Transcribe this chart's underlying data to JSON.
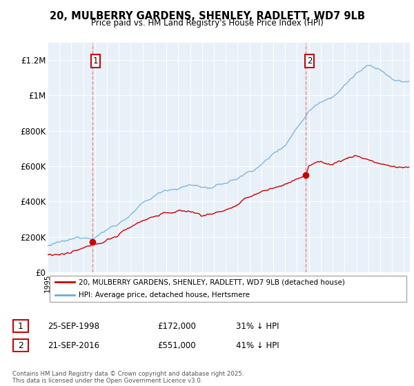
{
  "title": "20, MULBERRY GARDENS, SHENLEY, RADLETT, WD7 9LB",
  "subtitle": "Price paid vs. HM Land Registry's House Price Index (HPI)",
  "legend_line1": "20, MULBERRY GARDENS, SHENLEY, RADLETT, WD7 9LB (detached house)",
  "legend_line2": "HPI: Average price, detached house, Hertsmere",
  "footer": "Contains HM Land Registry data © Crown copyright and database right 2025.\nThis data is licensed under the Open Government Licence v3.0.",
  "red_color": "#cc0000",
  "blue_color": "#6baed6",
  "vline_color": "#e88080",
  "plot_bg": "#e8f0f8",
  "ylim": [
    0,
    1300000
  ],
  "yticks": [
    0,
    200000,
    400000,
    600000,
    800000,
    1000000,
    1200000
  ],
  "ytick_labels": [
    "£0",
    "£200K",
    "£400K",
    "£600K",
    "£800K",
    "£1M",
    "£1.2M"
  ],
  "sale1_year": 1998.75,
  "sale1_price": 172000,
  "sale2_year": 2016.75,
  "sale2_price": 551000,
  "ann1_label": "1",
  "ann2_label": "2",
  "ann1_date": "25-SEP-1998",
  "ann1_price": "£172,000",
  "ann1_hpi": "31% ↓ HPI",
  "ann2_date": "21-SEP-2016",
  "ann2_price": "£551,000",
  "ann2_hpi": "41% ↓ HPI"
}
